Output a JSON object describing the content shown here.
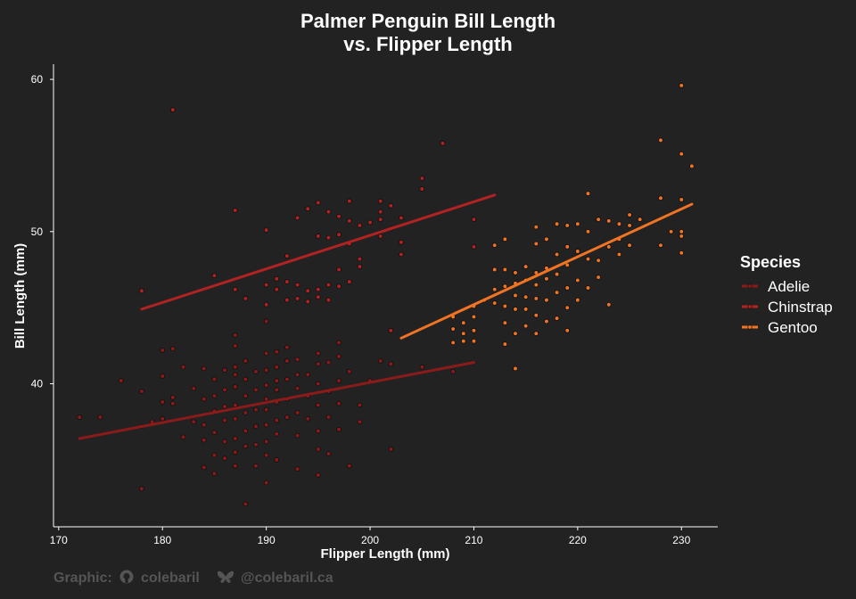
{
  "chart_data": {
    "type": "scatter",
    "title_line1": "Palmer Penguin Bill Length",
    "title_line2": "vs. Flipper Length",
    "xlabel": "Flipper Length (mm)",
    "ylabel": "Bill Length (mm)",
    "xlim": [
      169.5,
      233.5
    ],
    "ylim": [
      30.6,
      61.0
    ],
    "xticks": [
      170,
      180,
      190,
      200,
      210,
      220,
      230
    ],
    "yticks": [
      40,
      50,
      60
    ],
    "grid": false,
    "legend_position": "right",
    "legend_title": "Species",
    "series": [
      {
        "name": "Adelie",
        "color": "#8b1a1a",
        "trend": [
          [
            172,
            36.4
          ],
          [
            210,
            41.4
          ]
        ],
        "points": [
          [
            172,
            37.8
          ],
          [
            174,
            37.8
          ],
          [
            176,
            40.2
          ],
          [
            178,
            39.5
          ],
          [
            178,
            37.2
          ],
          [
            178,
            33.1
          ],
          [
            179,
            37.5
          ],
          [
            180,
            42.2
          ],
          [
            180,
            40.5
          ],
          [
            180,
            38.8
          ],
          [
            180,
            37.7
          ],
          [
            181,
            39.1
          ],
          [
            181,
            38.7
          ],
          [
            181,
            42.3
          ],
          [
            182,
            41.1
          ],
          [
            182,
            36.5
          ],
          [
            183,
            39.7
          ],
          [
            183,
            37.5
          ],
          [
            184,
            41.0
          ],
          [
            184,
            39.0
          ],
          [
            184,
            37.3
          ],
          [
            184,
            36.3
          ],
          [
            184,
            34.5
          ],
          [
            185,
            40.3
          ],
          [
            185,
            39.2
          ],
          [
            185,
            38.2
          ],
          [
            185,
            36.8
          ],
          [
            185,
            35.3
          ],
          [
            185,
            34.1
          ],
          [
            186,
            40.9
          ],
          [
            186,
            39.6
          ],
          [
            186,
            38.5
          ],
          [
            186,
            37.6
          ],
          [
            186,
            36.2
          ],
          [
            186,
            35.1
          ],
          [
            187,
            43.2
          ],
          [
            187,
            42.5
          ],
          [
            187,
            41.1
          ],
          [
            187,
            40.6
          ],
          [
            187,
            39.8
          ],
          [
            187,
            38.6
          ],
          [
            187,
            37.7
          ],
          [
            187,
            36.4
          ],
          [
            187,
            35.5
          ],
          [
            187,
            34.6
          ],
          [
            188,
            41.5
          ],
          [
            188,
            40.3
          ],
          [
            188,
            39.2
          ],
          [
            188,
            38.1
          ],
          [
            188,
            36.9
          ],
          [
            188,
            35.9
          ],
          [
            188,
            32.1
          ],
          [
            189,
            40.8
          ],
          [
            189,
            39.6
          ],
          [
            189,
            38.3
          ],
          [
            189,
            37.2
          ],
          [
            189,
            36.0
          ],
          [
            189,
            34.6
          ],
          [
            190,
            44.1
          ],
          [
            190,
            42.0
          ],
          [
            190,
            40.9
          ],
          [
            190,
            39.9
          ],
          [
            190,
            39.0
          ],
          [
            190,
            38.3
          ],
          [
            190,
            37.3
          ],
          [
            190,
            36.2
          ],
          [
            190,
            35.3
          ],
          [
            190,
            33.5
          ],
          [
            191,
            42.1
          ],
          [
            191,
            41.1
          ],
          [
            191,
            40.2
          ],
          [
            191,
            39.6
          ],
          [
            191,
            38.8
          ],
          [
            191,
            37.6
          ],
          [
            191,
            36.7
          ],
          [
            191,
            35.0
          ],
          [
            192,
            42.4
          ],
          [
            192,
            41.5
          ],
          [
            192,
            40.3
          ],
          [
            192,
            39.0
          ],
          [
            192,
            37.8
          ],
          [
            193,
            41.6
          ],
          [
            193,
            40.6
          ],
          [
            193,
            39.7
          ],
          [
            193,
            38.1
          ],
          [
            193,
            36.6
          ],
          [
            193,
            34.4
          ],
          [
            194,
            40.6
          ],
          [
            194,
            39.2
          ],
          [
            194,
            37.7
          ],
          [
            195,
            42.0
          ],
          [
            195,
            41.3
          ],
          [
            195,
            40.0
          ],
          [
            195,
            38.6
          ],
          [
            195,
            36.9
          ],
          [
            195,
            35.7
          ],
          [
            195,
            34.0
          ],
          [
            196,
            41.4
          ],
          [
            196,
            39.5
          ],
          [
            196,
            37.8
          ],
          [
            196,
            35.4
          ],
          [
            197,
            42.7
          ],
          [
            197,
            41.8
          ],
          [
            197,
            40.2
          ],
          [
            197,
            38.7
          ],
          [
            197,
            37.0
          ],
          [
            198,
            40.8
          ],
          [
            198,
            34.6
          ],
          [
            199,
            38.6
          ],
          [
            199,
            37.5
          ],
          [
            200,
            40.2
          ],
          [
            201,
            41.5
          ],
          [
            202,
            41.3
          ],
          [
            202,
            35.7
          ],
          [
            205,
            41.1
          ],
          [
            208,
            40.8
          ]
        ]
      },
      {
        "name": "Chinstrap",
        "color": "#b22222",
        "trend": [
          [
            178,
            44.9
          ],
          [
            212,
            52.4
          ]
        ],
        "points": [
          [
            178,
            46.1
          ],
          [
            181,
            58.0
          ],
          [
            185,
            47.1
          ],
          [
            187,
            51.4
          ],
          [
            187,
            46.2
          ],
          [
            188,
            45.6
          ],
          [
            190,
            50.1
          ],
          [
            190,
            46.5
          ],
          [
            190,
            45.2
          ],
          [
            191,
            46.9
          ],
          [
            191,
            46.2
          ],
          [
            192,
            48.4
          ],
          [
            192,
            46.7
          ],
          [
            192,
            45.5
          ],
          [
            193,
            50.9
          ],
          [
            193,
            46.5
          ],
          [
            193,
            45.6
          ],
          [
            194,
            51.5
          ],
          [
            194,
            46.1
          ],
          [
            194,
            45.4
          ],
          [
            195,
            51.9
          ],
          [
            195,
            49.7
          ],
          [
            195,
            46.2
          ],
          [
            195,
            45.7
          ],
          [
            196,
            51.3
          ],
          [
            196,
            49.6
          ],
          [
            196,
            46.5
          ],
          [
            196,
            45.5
          ],
          [
            197,
            51.0
          ],
          [
            197,
            49.8
          ],
          [
            197,
            47.5
          ],
          [
            197,
            46.4
          ],
          [
            198,
            52.0
          ],
          [
            198,
            50.7
          ],
          [
            198,
            49.2
          ],
          [
            198,
            46.7
          ],
          [
            199,
            50.4
          ],
          [
            199,
            48.2
          ],
          [
            199,
            47.7
          ],
          [
            200,
            50.6
          ],
          [
            201,
            52.0
          ],
          [
            201,
            51.3
          ],
          [
            201,
            50.8
          ],
          [
            201,
            49.7
          ],
          [
            202,
            51.7
          ],
          [
            202,
            50.2
          ],
          [
            202,
            43.5
          ],
          [
            203,
            50.9
          ],
          [
            203,
            49.3
          ],
          [
            203,
            48.5
          ],
          [
            205,
            53.5
          ],
          [
            205,
            52.8
          ],
          [
            207,
            55.8
          ],
          [
            210,
            50.8
          ],
          [
            210,
            49.0
          ]
        ]
      },
      {
        "name": "Gentoo",
        "color": "#f07423",
        "trend": [
          [
            203,
            43.0
          ],
          [
            231,
            51.8
          ]
        ],
        "points": [
          [
            208,
            42.7
          ],
          [
            208,
            43.6
          ],
          [
            208,
            44.4
          ],
          [
            209,
            42.8
          ],
          [
            209,
            43.3
          ],
          [
            209,
            44.0
          ],
          [
            210,
            45.1
          ],
          [
            210,
            44.4
          ],
          [
            210,
            43.5
          ],
          [
            210,
            42.8
          ],
          [
            211,
            45.5
          ],
          [
            212,
            49.1
          ],
          [
            212,
            47.5
          ],
          [
            212,
            46.2
          ],
          [
            212,
            45.3
          ],
          [
            213,
            49.5
          ],
          [
            213,
            47.5
          ],
          [
            213,
            46.4
          ],
          [
            213,
            45.1
          ],
          [
            213,
            44.0
          ],
          [
            213,
            42.6
          ],
          [
            214,
            47.3
          ],
          [
            214,
            46.6
          ],
          [
            214,
            45.8
          ],
          [
            214,
            44.9
          ],
          [
            214,
            43.3
          ],
          [
            214,
            41.0
          ],
          [
            215,
            47.7
          ],
          [
            215,
            46.8
          ],
          [
            215,
            45.7
          ],
          [
            215,
            44.9
          ],
          [
            215,
            43.8
          ],
          [
            216,
            50.3
          ],
          [
            216,
            49.2
          ],
          [
            216,
            47.3
          ],
          [
            216,
            46.5
          ],
          [
            216,
            45.6
          ],
          [
            216,
            44.5
          ],
          [
            216,
            43.3
          ],
          [
            217,
            49.5
          ],
          [
            217,
            47.6
          ],
          [
            217,
            46.9
          ],
          [
            217,
            45.5
          ],
          [
            217,
            44.1
          ],
          [
            218,
            50.5
          ],
          [
            218,
            48.5
          ],
          [
            218,
            47.2
          ],
          [
            218,
            46.0
          ],
          [
            218,
            44.3
          ],
          [
            219,
            50.4
          ],
          [
            219,
            49.0
          ],
          [
            219,
            47.8
          ],
          [
            219,
            46.3
          ],
          [
            219,
            45.0
          ],
          [
            219,
            43.5
          ],
          [
            220,
            50.5
          ],
          [
            220,
            48.7
          ],
          [
            220,
            46.8
          ],
          [
            220,
            45.5
          ],
          [
            221,
            52.5
          ],
          [
            221,
            50.0
          ],
          [
            221,
            48.2
          ],
          [
            221,
            46.3
          ],
          [
            222,
            50.8
          ],
          [
            222,
            48.1
          ],
          [
            222,
            47.0
          ],
          [
            223,
            50.7
          ],
          [
            223,
            49.0
          ],
          [
            223,
            45.2
          ],
          [
            224,
            50.5
          ],
          [
            224,
            49.5
          ],
          [
            224,
            48.5
          ],
          [
            225,
            51.1
          ],
          [
            225,
            50.4
          ],
          [
            225,
            49.1
          ],
          [
            226,
            50.8
          ],
          [
            228,
            56.0
          ],
          [
            228,
            52.2
          ],
          [
            228,
            49.1
          ],
          [
            229,
            50.0
          ],
          [
            230,
            59.6
          ],
          [
            230,
            55.1
          ],
          [
            230,
            52.1
          ],
          [
            230,
            50.0
          ],
          [
            230,
            49.7
          ],
          [
            230,
            48.6
          ],
          [
            231,
            54.3
          ]
        ]
      }
    ]
  },
  "caption": {
    "prefix": "Graphic:",
    "github": "colebaril",
    "bluesky": "@colebaril.ca",
    "github_icon": "github-icon",
    "bluesky_icon": "butterfly-icon"
  }
}
